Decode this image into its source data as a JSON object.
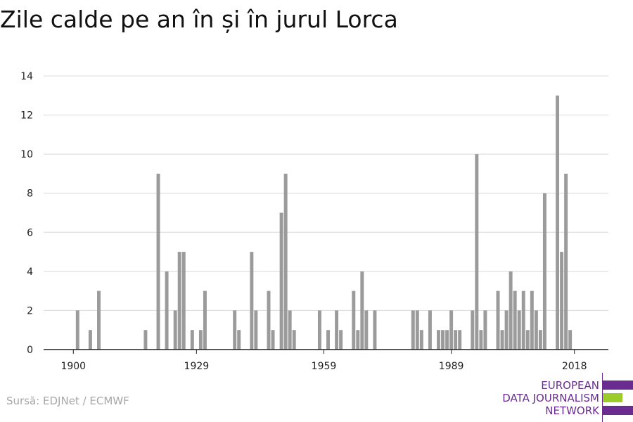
{
  "chart_data": {
    "type": "bar",
    "title": "Zile calde pe an în și în jurul Lorca",
    "xlabel": "",
    "ylabel": "",
    "ylim": [
      0,
      14
    ],
    "y_ticks": [
      0,
      2,
      4,
      6,
      8,
      10,
      12,
      14
    ],
    "x_ticks": [
      1900,
      1929,
      1959,
      1989,
      2018
    ],
    "x_range": [
      1893,
      2026
    ],
    "grid": true,
    "legend": "none",
    "bar_color": "#9b9b9b",
    "x": [
      1901,
      1904,
      1906,
      1917,
      1920,
      1922,
      1924,
      1925,
      1926,
      1928,
      1930,
      1931,
      1938,
      1939,
      1942,
      1943,
      1946,
      1947,
      1949,
      1950,
      1951,
      1952,
      1954,
      1958,
      1960,
      1962,
      1963,
      1966,
      1967,
      1968,
      1969,
      1971,
      1980,
      1981,
      1982,
      1984,
      1986,
      1987,
      1988,
      1989,
      1990,
      1991,
      1994,
      1995,
      1996,
      1997,
      2000,
      2001,
      2002,
      2003,
      2004,
      2005,
      2006,
      2007,
      2008,
      2009,
      2010,
      2011,
      2014,
      2015,
      2016,
      2017
    ],
    "values": [
      2,
      1,
      3,
      1,
      9,
      4,
      2,
      5,
      5,
      1,
      1,
      3,
      2,
      1,
      5,
      2,
      3,
      1,
      7,
      9,
      2,
      1,
      0,
      2,
      1,
      2,
      1,
      3,
      1,
      4,
      2,
      2,
      2,
      2,
      1,
      2,
      1,
      1,
      1,
      2,
      1,
      1,
      2,
      10,
      1,
      2,
      3,
      1,
      2,
      4,
      3,
      2,
      3,
      1,
      3,
      2,
      1,
      8,
      13,
      5,
      9,
      1
    ]
  },
  "source": "Sursă: EDJNet / ECMWF",
  "logo": {
    "line1": "EUROPEAN",
    "line2": "DATA JOURNALISM",
    "line3": "NETWORK",
    "purple": "#6a2c91",
    "green": "#9ccc2a"
  }
}
